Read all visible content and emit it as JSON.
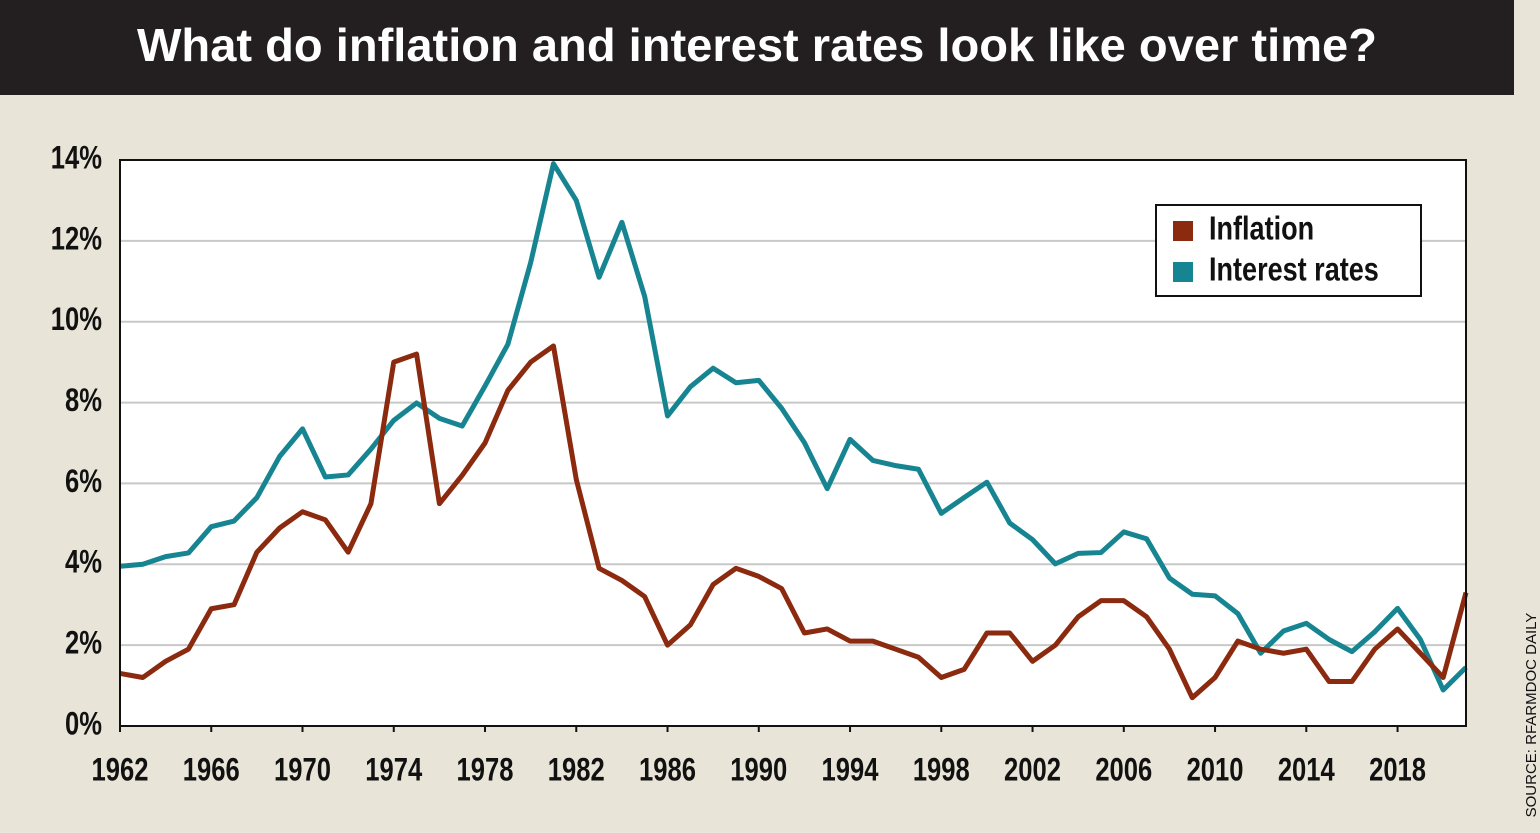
{
  "chart_data": {
    "type": "line",
    "title": "What do inflation and interest rates look like over time?",
    "source": "SOURCE: RFARMDOC DAILY",
    "x": [
      1962,
      1963,
      1964,
      1965,
      1966,
      1967,
      1968,
      1969,
      1970,
      1971,
      1972,
      1973,
      1974,
      1975,
      1976,
      1977,
      1978,
      1979,
      1980,
      1981,
      1982,
      1983,
      1984,
      1985,
      1986,
      1987,
      1988,
      1989,
      1990,
      1991,
      1992,
      1993,
      1994,
      1995,
      1996,
      1997,
      1998,
      1999,
      2000,
      2001,
      2002,
      2003,
      2004,
      2005,
      2006,
      2007,
      2008,
      2009,
      2010,
      2011,
      2012,
      2013,
      2014,
      2015,
      2016,
      2017,
      2018,
      2019,
      2020,
      2021
    ],
    "series": [
      {
        "name": "Inflation",
        "color": "#8b2a0e",
        "values": [
          1.3,
          1.2,
          1.6,
          1.9,
          2.9,
          3.0,
          4.3,
          4.9,
          5.3,
          5.1,
          4.3,
          5.5,
          9.0,
          9.2,
          5.5,
          6.2,
          7.0,
          8.3,
          9.0,
          9.4,
          6.1,
          3.9,
          3.6,
          3.2,
          2.0,
          2.5,
          3.5,
          3.9,
          3.7,
          3.4,
          2.3,
          2.4,
          2.1,
          2.1,
          1.9,
          1.7,
          1.2,
          1.4,
          2.3,
          2.3,
          1.6,
          2.0,
          2.7,
          3.1,
          3.1,
          2.7,
          1.9,
          0.7,
          1.2,
          2.1,
          1.9,
          1.8,
          1.9,
          1.1,
          1.1,
          1.9,
          2.4,
          1.8,
          1.2,
          3.3
        ]
      },
      {
        "name": "Interest rates",
        "color": "#168591",
        "values": [
          3.95,
          4.0,
          4.19,
          4.28,
          4.93,
          5.07,
          5.65,
          6.67,
          7.35,
          6.16,
          6.21,
          6.85,
          7.56,
          7.99,
          7.61,
          7.42,
          8.41,
          9.44,
          11.46,
          13.91,
          13.0,
          11.1,
          12.46,
          10.62,
          7.67,
          8.39,
          8.85,
          8.49,
          8.55,
          7.86,
          7.01,
          5.87,
          7.09,
          6.57,
          6.44,
          6.35,
          5.26,
          5.65,
          6.03,
          5.02,
          4.61,
          4.01,
          4.27,
          4.29,
          4.8,
          4.63,
          3.66,
          3.26,
          3.22,
          2.78,
          1.8,
          2.35,
          2.54,
          2.14,
          1.84,
          2.33,
          2.91,
          2.14,
          0.89,
          1.45
        ]
      }
    ],
    "xlim": [
      1962,
      2021
    ],
    "xticks": [
      1962,
      1966,
      1970,
      1974,
      1978,
      1982,
      1986,
      1990,
      1994,
      1998,
      2002,
      2006,
      2010,
      2014,
      2018
    ],
    "ylim": [
      0,
      14
    ],
    "yticks": [
      {
        "value": 0,
        "label": "0%"
      },
      {
        "value": 2,
        "label": "2%"
      },
      {
        "value": 4,
        "label": "4%"
      },
      {
        "value": 6,
        "label": "6%"
      },
      {
        "value": 8,
        "label": "8%"
      },
      {
        "value": 10,
        "label": "10%"
      },
      {
        "value": 12,
        "label": "12%"
      },
      {
        "value": 14,
        "label": "14%"
      }
    ],
    "grid": true,
    "legend": "upper right"
  }
}
